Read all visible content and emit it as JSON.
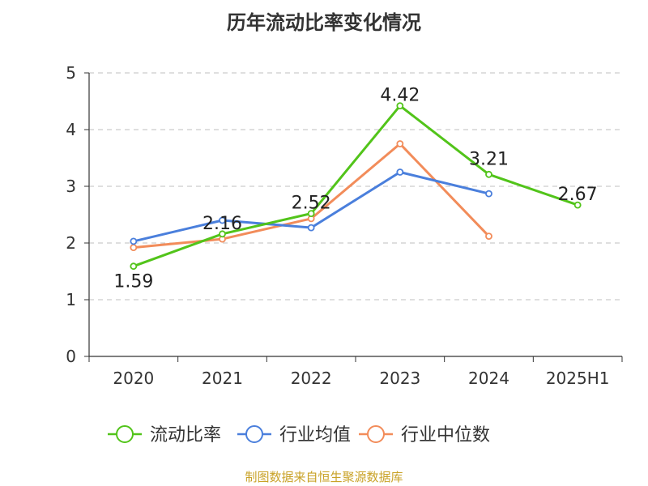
{
  "title": "历年流动比率变化情况",
  "source": "制图数据来自恒生聚源数据库",
  "chart_data": {
    "type": "line",
    "categories": [
      "2020",
      "2021",
      "2022",
      "2023",
      "2024",
      "2025H1"
    ],
    "ylim": [
      0,
      5
    ],
    "yticks": [
      0,
      1,
      2,
      3,
      4,
      5
    ],
    "grid": true,
    "legend_position": "bottom",
    "series": [
      {
        "name": "流动比率",
        "color": "#52c41a",
        "values": [
          1.59,
          2.16,
          2.52,
          4.42,
          3.21,
          2.67
        ],
        "show_labels": true
      },
      {
        "name": "行业均值",
        "color": "#4a7fdc",
        "values": [
          2.03,
          2.4,
          2.27,
          3.25,
          2.87,
          null
        ],
        "show_labels": false
      },
      {
        "name": "行业中位数",
        "color": "#f28c5a",
        "values": [
          1.92,
          2.07,
          2.43,
          3.75,
          2.12,
          null
        ],
        "show_labels": false
      }
    ],
    "data_labels": [
      "1.59",
      "2.16",
      "2.52",
      "4.42",
      "3.21",
      "2.67"
    ]
  }
}
